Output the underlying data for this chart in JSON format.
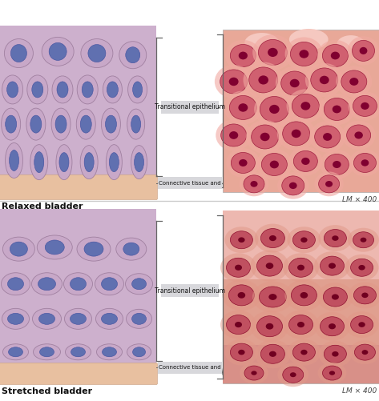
{
  "background_color": "#ffffff",
  "panel1": {
    "label_bottom_left": "Relaxed bladder",
    "label_bottom_right": "LM × 400",
    "label_connector1": "Transitional epithelium",
    "label_connector2": "Connective tissue and"
  },
  "panel2": {
    "label_bottom_left": "Stretched bladder",
    "label_bottom_right": "LM × 400",
    "label_connector1": "Transitional epithelium",
    "label_connector2": "Connective tissue and"
  },
  "ill_cell_fill": "#c8a8c8",
  "ill_cell_edge": "#a080a0",
  "ill_nucleus_fill": "#6070b0",
  "ill_nucleus_edge": "#4050a0",
  "ill_bg": "#cdb0cd",
  "ill_base_fill": "#e8c0a0",
  "ill_base_edge": "#c8a080",
  "photo1_bg": "#eba8a0",
  "photo2_bg": "#e8a098",
  "connector_box_color": "#d8d8dc",
  "bracket_color": "#666666",
  "line_color": "#666666",
  "text_color": "#111111"
}
